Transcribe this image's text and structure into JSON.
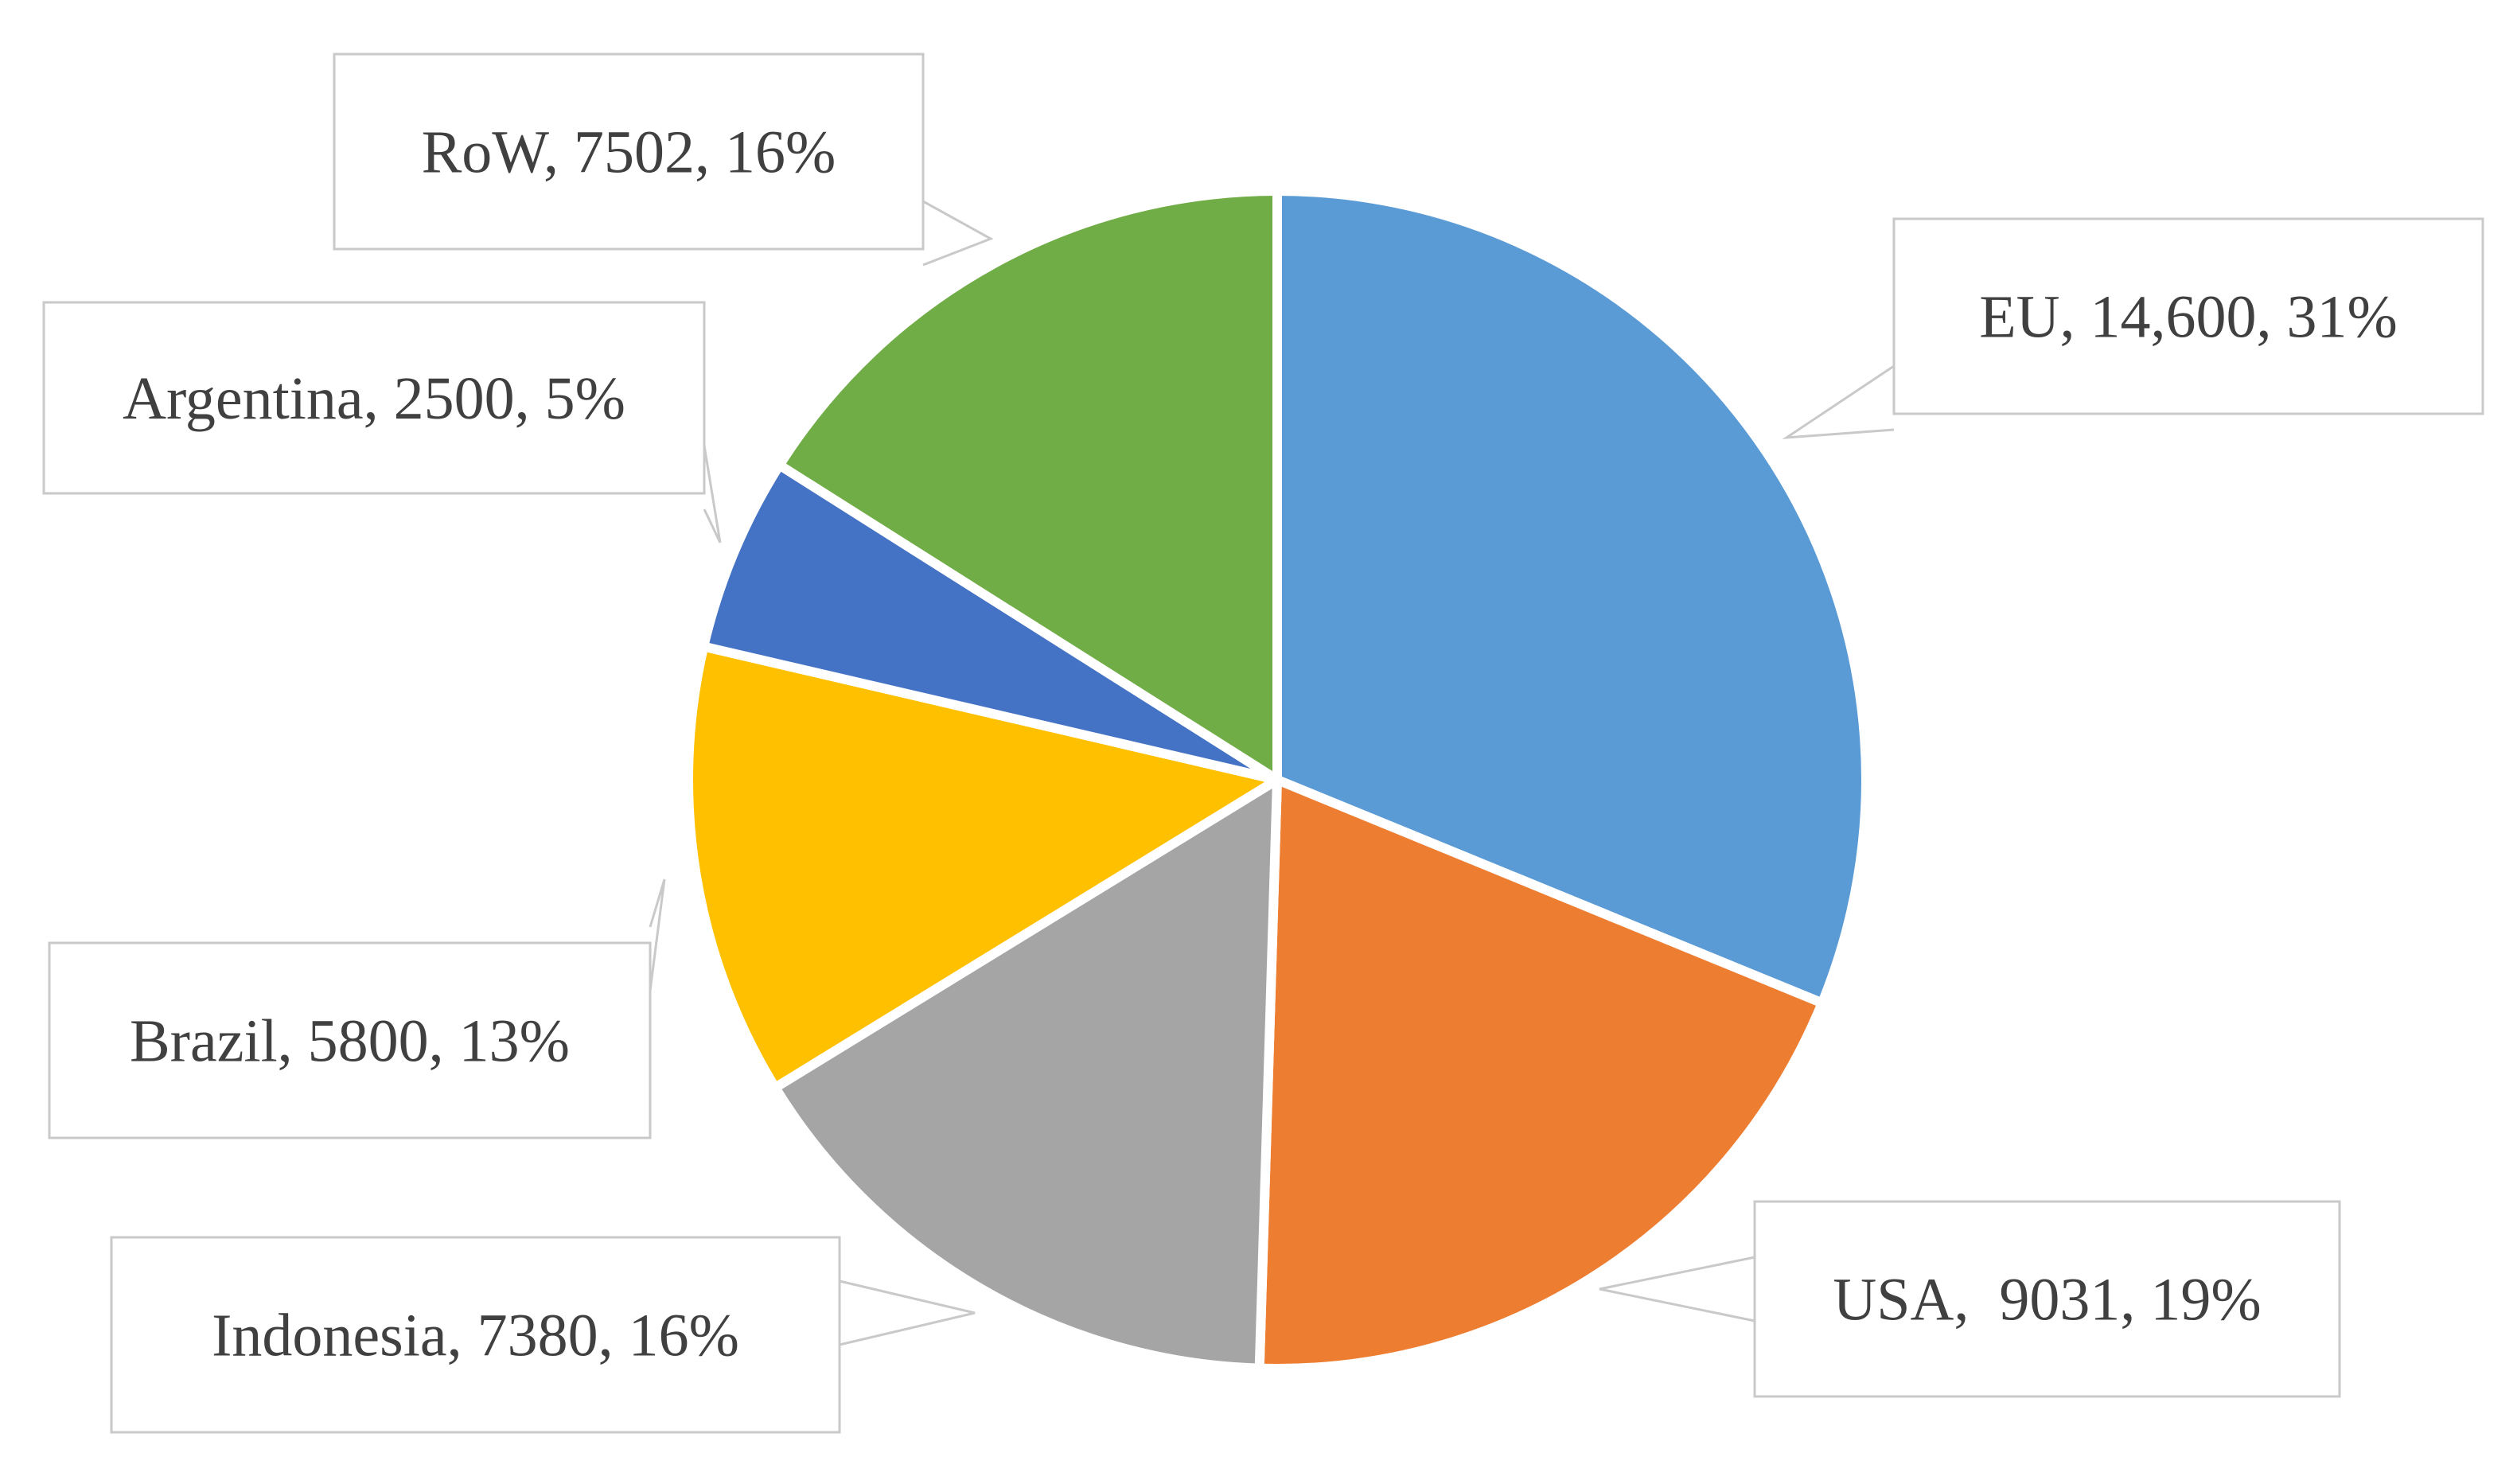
{
  "chart_data": {
    "type": "pie",
    "title": "",
    "slices": [
      {
        "label": "EU",
        "value": 14600,
        "percent": 31,
        "color": "#5B9BD5",
        "text": "EU, 14,600, 31%"
      },
      {
        "label": "USA",
        "value": 9031,
        "percent": 19,
        "color": "#ED7D31",
        "text": "USA,  9031, 19%"
      },
      {
        "label": "Indonesia",
        "value": 7380,
        "percent": 16,
        "color": "#A5A5A5",
        "text": "Indonesia, 7380, 16%"
      },
      {
        "label": "Brazil",
        "value": 5800,
        "percent": 13,
        "color": "#FFC000",
        "text": "Brazil, 5800, 13%"
      },
      {
        "label": "Argentina",
        "value": 2500,
        "percent": 5,
        "color": "#4472C4",
        "text": "Argentina, 2500, 5%"
      },
      {
        "label": "RoW",
        "value": 7502,
        "percent": 16,
        "color": "#70AD47",
        "text": "RoW, 7502, 16%"
      }
    ],
    "start_angle": "12 o'clock",
    "direction": "clockwise",
    "legend": "none",
    "data_labels": "callouts"
  }
}
